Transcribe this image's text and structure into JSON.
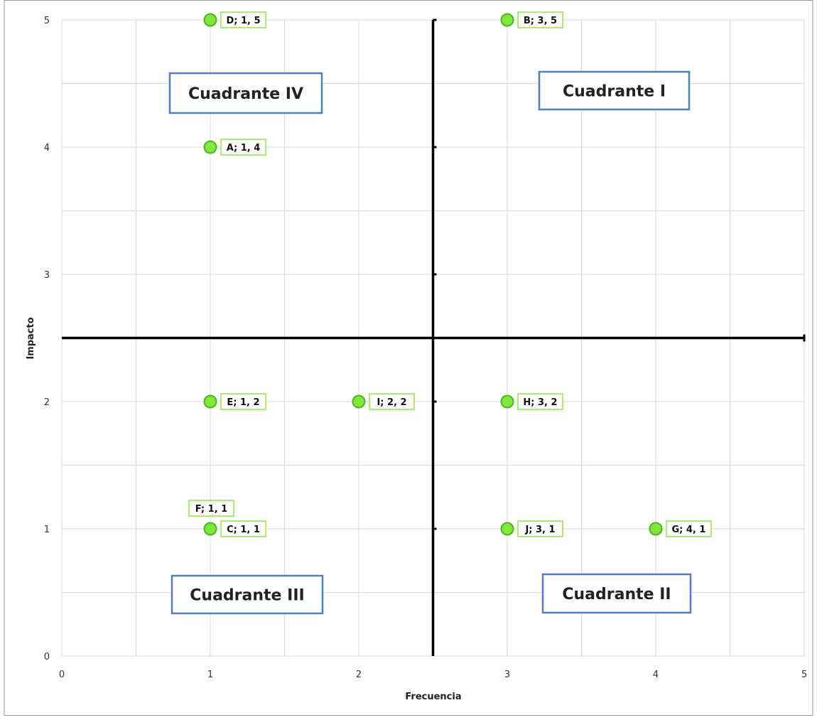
{
  "chart_data": {
    "type": "scatter",
    "title": "",
    "xlabel": "Frecuencia",
    "ylabel": "Impacto",
    "xlim": [
      0,
      5
    ],
    "ylim": [
      0,
      5
    ],
    "x_ticks": [
      "0",
      "1",
      "2",
      "3",
      "4",
      "5"
    ],
    "y_ticks": [
      "0",
      "1",
      "2",
      "3",
      "4",
      "5"
    ],
    "grid": true,
    "grid_step": 0.5,
    "dividers": {
      "x": 2.5,
      "y": 2.5
    },
    "points": [
      {
        "label": "D; 1, 5",
        "x": 1,
        "y": 5
      },
      {
        "label": "B; 3, 5",
        "x": 3,
        "y": 5
      },
      {
        "label": "A; 1, 4",
        "x": 1,
        "y": 4
      },
      {
        "label": "E; 1, 2",
        "x": 1,
        "y": 2
      },
      {
        "label": "I; 2, 2",
        "x": 2,
        "y": 2
      },
      {
        "label": "H; 3, 2",
        "x": 3,
        "y": 2
      },
      {
        "label": "C; 1, 1",
        "x": 1,
        "y": 1
      },
      {
        "label": "F; 1, 1",
        "x": 1,
        "y": 1
      },
      {
        "label": "J; 3, 1",
        "x": 3,
        "y": 1
      },
      {
        "label": "G; 4, 1",
        "x": 4,
        "y": 1
      }
    ],
    "quadrants": [
      {
        "label": "Cuadrante IV",
        "position": "top-left"
      },
      {
        "label": "Cuadrante I",
        "position": "top-right"
      },
      {
        "label": "Cuadrante III",
        "position": "bottom-left"
      },
      {
        "label": "Cuadrante II",
        "position": "bottom-right"
      }
    ],
    "colors": {
      "marker_fill": "#7fe83a",
      "marker_stroke": "#48b81a",
      "label_border": "#8fe84a",
      "quadrant_border": "#4f7fbf",
      "grid": "#d9d9d9",
      "axis": "#000000"
    }
  }
}
